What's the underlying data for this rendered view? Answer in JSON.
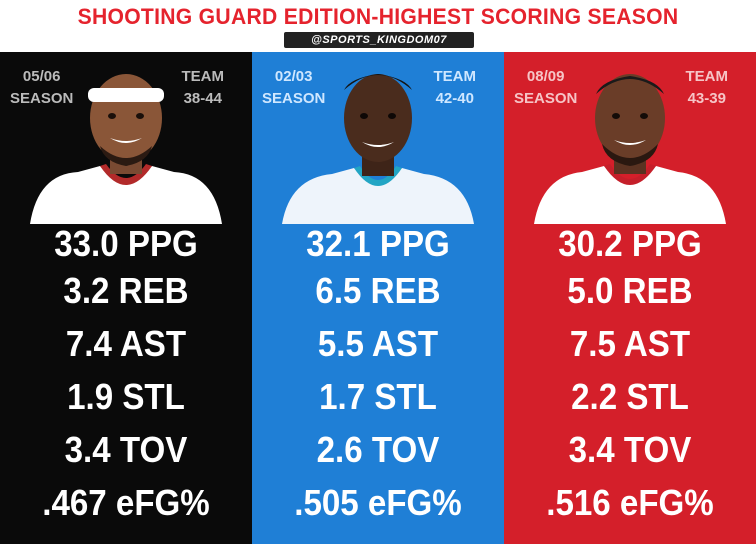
{
  "header": {
    "title": "SHOOTING GUARD EDITION-HIGHEST SCORING SEASON",
    "handle": "@SPORTS_KINGDOM07",
    "title_color": "#e5232d"
  },
  "players": [
    {
      "season_label": "05/06",
      "season_word": "SEASON",
      "team_label": "TEAM",
      "team_record": "38-44",
      "bg_color": "#0a0a0a",
      "label_color": "#bbbbbb",
      "jersey_color": "#ffffff",
      "jersey_trim": "#b22a2a",
      "stats": [
        "33.0 PPG",
        "3.2 REB",
        "7.4 AST",
        "1.9 STL",
        "3.4 TOV",
        ".467 eFG%"
      ]
    },
    {
      "season_label": "02/03",
      "season_word": "SEASON",
      "team_label": "TEAM",
      "team_record": "42-40",
      "bg_color": "#1f7fd6",
      "label_color": "#cfe7ff",
      "jersey_color": "#eef4fb",
      "jersey_trim": "#22a5c4",
      "stats": [
        "32.1 PPG",
        "6.5 REB",
        "5.5 AST",
        "1.7 STL",
        "2.6 TOV",
        ".505 eFG%"
      ]
    },
    {
      "season_label": "08/09",
      "season_word": "SEASON",
      "team_label": "TEAM",
      "team_record": "43-39",
      "bg_color": "#d41f2a",
      "label_color": "#f6c4c6",
      "jersey_color": "#ffffff",
      "jersey_trim": "#c51f2a",
      "stats": [
        "30.2 PPG",
        "5.0 REB",
        "7.5 AST",
        "2.2 STL",
        "3.4 TOV",
        ".516 eFG%"
      ]
    }
  ],
  "footer_watermark": "watermark"
}
